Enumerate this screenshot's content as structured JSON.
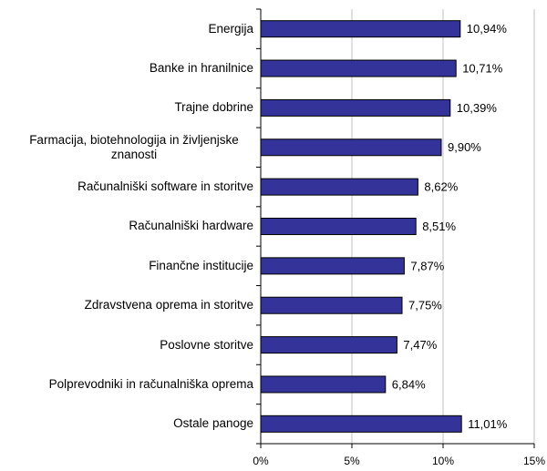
{
  "chart_data": {
    "type": "bar",
    "orientation": "horizontal",
    "categories": [
      "Energija",
      "Banke in hranilnice",
      "Trajne dobrine",
      "Farmacija, biotehnologija in življenjske znanosti",
      "Računalniški software in storitve",
      "Računalniški hardware",
      "Finančne institucije",
      "Zdravstvena oprema in storitve",
      "Poslovne storitve",
      "Polprevodniki in računalniška oprema",
      "Ostale panoge"
    ],
    "values": [
      10.94,
      10.71,
      10.39,
      9.9,
      8.62,
      8.51,
      7.87,
      7.75,
      7.47,
      6.84,
      11.01
    ],
    "value_labels": [
      "10,94%",
      "10,71%",
      "10,39%",
      "9,90%",
      "8,62%",
      "8,51%",
      "7,87%",
      "7,75%",
      "7,47%",
      "6,84%",
      "11,01%"
    ],
    "color": "#333399",
    "xlim": [
      0,
      15
    ],
    "xticks": [
      {
        "value": 0,
        "label": "0%"
      },
      {
        "value": 5,
        "label": "5%"
      },
      {
        "value": 10,
        "label": "10%"
      },
      {
        "value": 15,
        "label": "15%"
      }
    ],
    "grid": true
  }
}
